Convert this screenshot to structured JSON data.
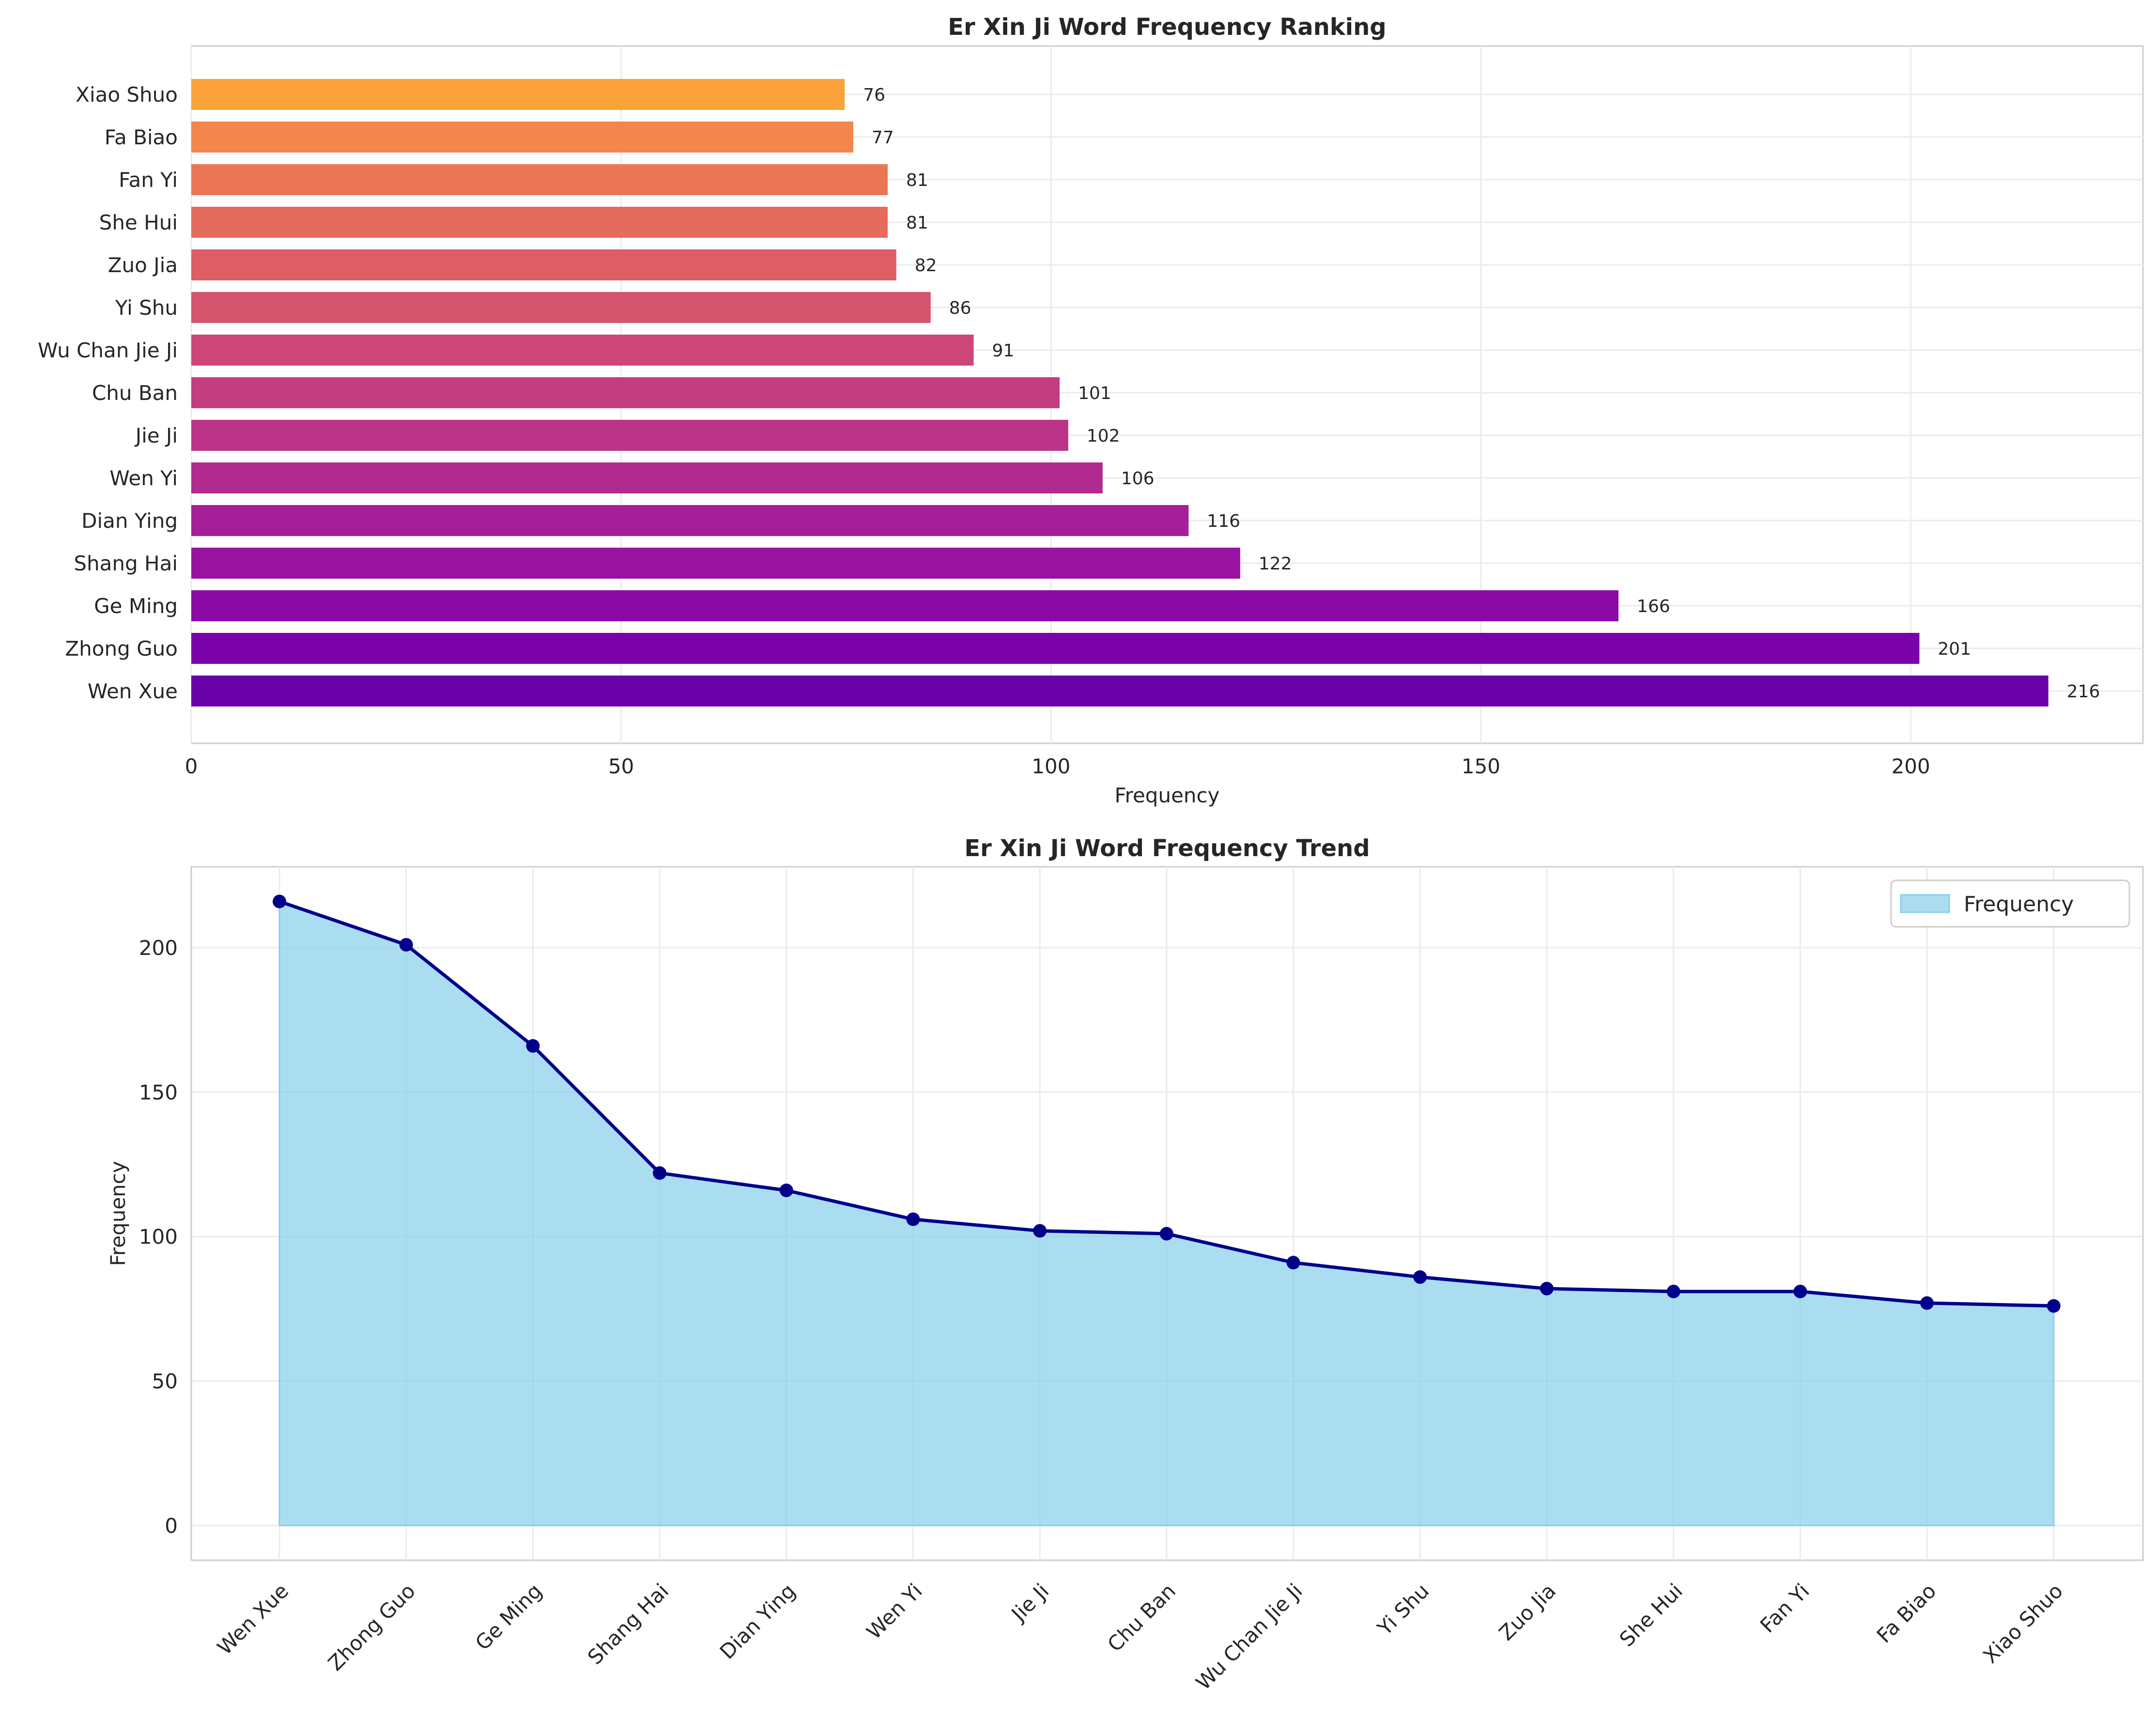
{
  "chart_data": [
    {
      "type": "bar",
      "orientation": "horizontal",
      "title": "Er Xin Ji Word Frequency Ranking",
      "xlabel": "Frequency",
      "ylabel": "",
      "xlim": [
        0,
        227
      ],
      "xticks": [
        0,
        50,
        100,
        150,
        200
      ],
      "xtick_labels": [
        "0",
        "50",
        "100",
        "150",
        "200"
      ],
      "grid": true,
      "categories": [
        "Wen Xue",
        "Zhong Guo",
        "Ge Ming",
        "Shang Hai",
        "Dian Ying",
        "Wen Yi",
        "Jie Ji",
        "Chu Ban",
        "Wu Chan Jie Ji",
        "Yi Shu",
        "Zuo Jia",
        "She Hui",
        "Fan Yi",
        "Fa Biao",
        "Xiao Shuo"
      ],
      "values": [
        216,
        201,
        166,
        122,
        116,
        106,
        102,
        101,
        91,
        86,
        82,
        81,
        81,
        77,
        76
      ],
      "value_labels": [
        "216",
        "201",
        "166",
        "122",
        "116",
        "106",
        "102",
        "101",
        "91",
        "86",
        "82",
        "81",
        "81",
        "77",
        "76"
      ],
      "colors": [
        "#6a00a8",
        "#7a02a8",
        "#8b0aa5",
        "#9814a0",
        "#a51f99",
        "#b12a90",
        "#bb3488",
        "#c43e7f",
        "#cc4778",
        "#d5546e",
        "#dd5e66",
        "#e56b5d",
        "#eb7655",
        "#f3864c",
        "#fba238"
      ]
    },
    {
      "type": "area",
      "title": "Er Xin Ji Word Frequency Trend",
      "xlabel": "",
      "ylabel": "Frequency",
      "ylim": [
        -12,
        228
      ],
      "yticks": [
        0,
        50,
        100,
        150,
        200
      ],
      "ytick_labels": [
        "0",
        "50",
        "100",
        "150",
        "200"
      ],
      "grid": true,
      "categories": [
        "Wen Xue",
        "Zhong Guo",
        "Ge Ming",
        "Shang Hai",
        "Dian Ying",
        "Wen Yi",
        "Jie Ji",
        "Chu Ban",
        "Wu Chan Jie Ji",
        "Yi Shu",
        "Zuo Jia",
        "She Hui",
        "Fan Yi",
        "Fa Biao",
        "Xiao Shuo"
      ],
      "series": [
        {
          "name": "Frequency",
          "values": [
            216,
            201,
            166,
            122,
            116,
            106,
            102,
            101,
            91,
            86,
            82,
            81,
            81,
            77,
            76
          ]
        }
      ],
      "fill_color": "#87ceeb",
      "line_color": "#00008b",
      "legend_position": "top-right"
    }
  ]
}
